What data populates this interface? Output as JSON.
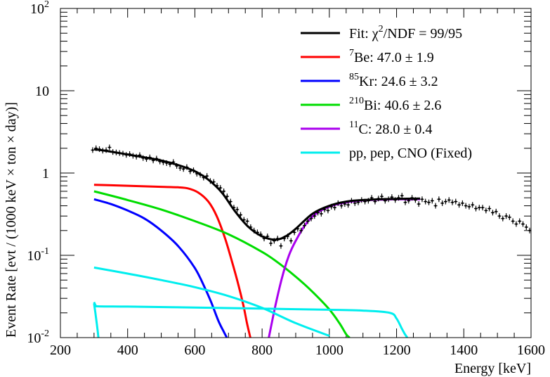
{
  "chart_data": {
    "type": "line",
    "title": "",
    "xlabel": "Energy [keV]",
    "ylabel": "Event Rate [evt / (1000 keV × ton × day)]",
    "xlim": [
      200,
      1600
    ],
    "ylim": [
      0.01,
      100
    ],
    "yscale": "log",
    "x_ticks": [
      200,
      400,
      600,
      800,
      1000,
      1200,
      1400,
      1600
    ],
    "x_tick_labels": [
      "200",
      "400",
      "600",
      "800",
      "1000",
      "1200",
      "1400",
      "1600"
    ],
    "y_ticks": [
      {
        "value": 0.01,
        "base": "10",
        "exp": "-2"
      },
      {
        "value": 0.1,
        "base": "10",
        "exp": "-1"
      },
      {
        "value": 1,
        "base": "1",
        "exp": ""
      },
      {
        "value": 10,
        "base": "10",
        "exp": ""
      },
      {
        "value": 100,
        "base": "10",
        "exp": "2"
      }
    ],
    "legend_position": "top-right",
    "series": [
      {
        "name": "fit",
        "legend": {
          "pre": "Fit: χ",
          "sup": "2",
          "post": "/NDF = 99/95"
        },
        "color": "#000000",
        "x": [
          300,
          350,
          400,
          450,
          500,
          550,
          600,
          640,
          680,
          720,
          760,
          800,
          840,
          870,
          900,
          950,
          1000,
          1050,
          1100,
          1150,
          1200,
          1270
        ],
        "y": [
          1.95,
          1.82,
          1.68,
          1.55,
          1.42,
          1.25,
          1.05,
          0.83,
          0.58,
          0.34,
          0.22,
          0.17,
          0.155,
          0.17,
          0.21,
          0.32,
          0.4,
          0.45,
          0.47,
          0.48,
          0.485,
          0.49
        ]
      },
      {
        "name": "be7",
        "legend": {
          "pre": "",
          "sup": "7",
          "post": "Be: 47.0 ± 1.9"
        },
        "color": "#ff0000",
        "x": [
          300,
          350,
          400,
          450,
          500,
          550,
          580,
          610,
          640,
          665,
          690,
          710,
          730,
          745,
          755,
          765
        ],
        "y": [
          0.72,
          0.71,
          0.7,
          0.69,
          0.68,
          0.67,
          0.65,
          0.58,
          0.45,
          0.3,
          0.16,
          0.085,
          0.043,
          0.024,
          0.015,
          0.01
        ]
      },
      {
        "name": "kr85",
        "legend": {
          "pre": "",
          "sup": "85",
          "post": "Kr: 24.6 ± 3.2"
        },
        "color": "#0000ff",
        "x": [
          300,
          350,
          400,
          450,
          500,
          550,
          600,
          630,
          650,
          670,
          685,
          695
        ],
        "y": [
          0.48,
          0.42,
          0.35,
          0.28,
          0.2,
          0.13,
          0.07,
          0.04,
          0.026,
          0.016,
          0.012,
          0.01
        ]
      },
      {
        "name": "bi210",
        "legend": {
          "pre": "",
          "sup": "210",
          "post": "Bi: 40.6 ± 2.6"
        },
        "color": "#00dd00",
        "x": [
          300,
          400,
          500,
          600,
          700,
          800,
          850,
          900,
          950,
          1000,
          1030,
          1050,
          1060
        ],
        "y": [
          0.6,
          0.47,
          0.36,
          0.26,
          0.18,
          0.11,
          0.08,
          0.055,
          0.036,
          0.022,
          0.015,
          0.011,
          0.01
        ]
      },
      {
        "name": "c11",
        "legend": {
          "pre": "",
          "sup": "11",
          "post": "C: 28.0 ± 0.4"
        },
        "color": "#aa00ee",
        "x": [
          820,
          840,
          860,
          880,
          900,
          930,
          960,
          1000,
          1050,
          1100,
          1150,
          1200,
          1270
        ],
        "y": [
          0.01,
          0.025,
          0.055,
          0.1,
          0.15,
          0.24,
          0.32,
          0.39,
          0.44,
          0.465,
          0.475,
          0.48,
          0.48
        ]
      },
      {
        "name": "cno",
        "legend": {
          "pre": "",
          "sup": "",
          "post": "pp, pep, CNO (Fixed)"
        },
        "color": "#00eeee",
        "x": [
          300,
          400,
          500,
          600,
          700,
          800,
          900,
          1000
        ],
        "y": [
          0.071,
          0.06,
          0.05,
          0.041,
          0.032,
          0.023,
          0.015,
          0.0105
        ]
      },
      {
        "name": "pep-cno-flat",
        "legend": null,
        "color": "#00eeee",
        "x": [
          300,
          305,
          310,
          400,
          600,
          800,
          1000,
          1100,
          1180,
          1200,
          1215,
          1225,
          1232
        ],
        "y": [
          0.027,
          0.0245,
          0.024,
          0.0238,
          0.0232,
          0.0225,
          0.0218,
          0.0213,
          0.02,
          0.017,
          0.013,
          0.011,
          0.01
        ]
      },
      {
        "name": "pp-steep",
        "legend": null,
        "color": "#00eeee",
        "x": [
          300,
          304,
          308,
          311,
          313
        ],
        "y": [
          0.026,
          0.02,
          0.015,
          0.012,
          0.01
        ]
      }
    ],
    "data_points": {
      "name": "data",
      "color": "#000000",
      "x": [
        296,
        306,
        316,
        326,
        336,
        346,
        356,
        366,
        376,
        386,
        396,
        406,
        416,
        426,
        436,
        446,
        456,
        466,
        476,
        486,
        496,
        506,
        516,
        526,
        536,
        546,
        556,
        566,
        576,
        586,
        596,
        606,
        616,
        626,
        636,
        646,
        656,
        666,
        676,
        686,
        696,
        706,
        716,
        726,
        736,
        746,
        756,
        766,
        776,
        786,
        796,
        806,
        816,
        826,
        836,
        846,
        856,
        866,
        876,
        886,
        896,
        906,
        916,
        926,
        936,
        946,
        956,
        966,
        976,
        986,
        996,
        1006,
        1016,
        1026,
        1036,
        1046,
        1056,
        1066,
        1076,
        1086,
        1096,
        1106,
        1116,
        1126,
        1136,
        1146,
        1156,
        1166,
        1176,
        1186,
        1196,
        1206,
        1216,
        1226,
        1236,
        1246,
        1256,
        1266,
        1276,
        1286,
        1296,
        1306,
        1316,
        1326,
        1336,
        1346,
        1356,
        1366,
        1376,
        1386,
        1396,
        1406,
        1416,
        1426,
        1436,
        1446,
        1456,
        1466,
        1476,
        1486,
        1496,
        1506,
        1516,
        1526,
        1536,
        1546,
        1556,
        1566,
        1576,
        1586,
        1596
      ],
      "y": [
        1.9,
        2.0,
        1.95,
        1.87,
        1.9,
        2.05,
        1.8,
        1.78,
        1.75,
        1.72,
        1.66,
        1.7,
        1.62,
        1.58,
        1.65,
        1.52,
        1.48,
        1.55,
        1.42,
        1.5,
        1.38,
        1.35,
        1.32,
        1.28,
        1.36,
        1.22,
        1.15,
        1.12,
        1.18,
        1.05,
        1.08,
        0.98,
        0.95,
        0.88,
        0.92,
        0.8,
        0.78,
        0.7,
        0.66,
        0.6,
        0.52,
        0.45,
        0.38,
        0.36,
        0.31,
        0.27,
        0.26,
        0.22,
        0.2,
        0.19,
        0.18,
        0.16,
        0.17,
        0.14,
        0.15,
        0.16,
        0.13,
        0.16,
        0.17,
        0.15,
        0.19,
        0.21,
        0.2,
        0.23,
        0.26,
        0.28,
        0.3,
        0.33,
        0.32,
        0.36,
        0.35,
        0.39,
        0.38,
        0.43,
        0.4,
        0.42,
        0.41,
        0.46,
        0.43,
        0.44,
        0.47,
        0.45,
        0.46,
        0.5,
        0.45,
        0.49,
        0.52,
        0.46,
        0.48,
        0.51,
        0.47,
        0.5,
        0.53,
        0.44,
        0.46,
        0.5,
        0.47,
        0.42,
        0.48,
        0.45,
        0.44,
        0.46,
        0.4,
        0.48,
        0.43,
        0.45,
        0.47,
        0.44,
        0.45,
        0.41,
        0.43,
        0.4,
        0.39,
        0.41,
        0.37,
        0.38,
        0.38,
        0.35,
        0.37,
        0.33,
        0.34,
        0.3,
        0.28,
        0.3,
        0.29,
        0.26,
        0.24,
        0.26,
        0.24,
        0.22,
        0.2
      ]
    }
  }
}
